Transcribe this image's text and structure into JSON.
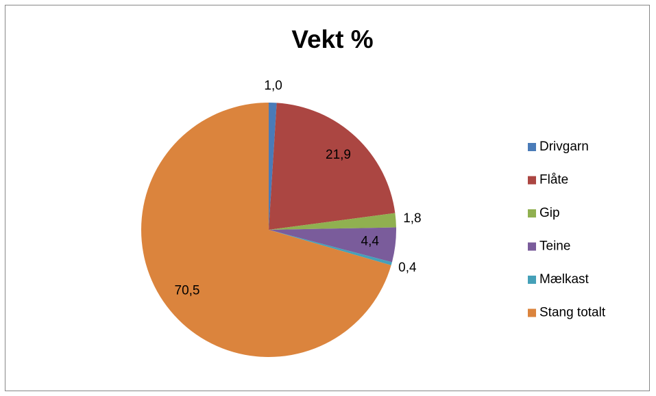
{
  "chart_data": {
    "type": "pie",
    "title": "Vekt %",
    "categories": [
      "Drivgarn",
      "Flåte",
      "Gip",
      "Teine",
      "Mælkast",
      "Stang totalt"
    ],
    "values": [
      1.0,
      21.9,
      1.8,
      4.4,
      0.4,
      70.5
    ],
    "value_labels": [
      "1,0",
      "21,9",
      "1,8",
      "4,4",
      "0,4",
      "70,5"
    ],
    "colors": [
      "#4a7bb8",
      "#ab4642",
      "#90b050",
      "#7a5c9b",
      "#45a0b8",
      "#db843d"
    ],
    "legend": "right"
  }
}
